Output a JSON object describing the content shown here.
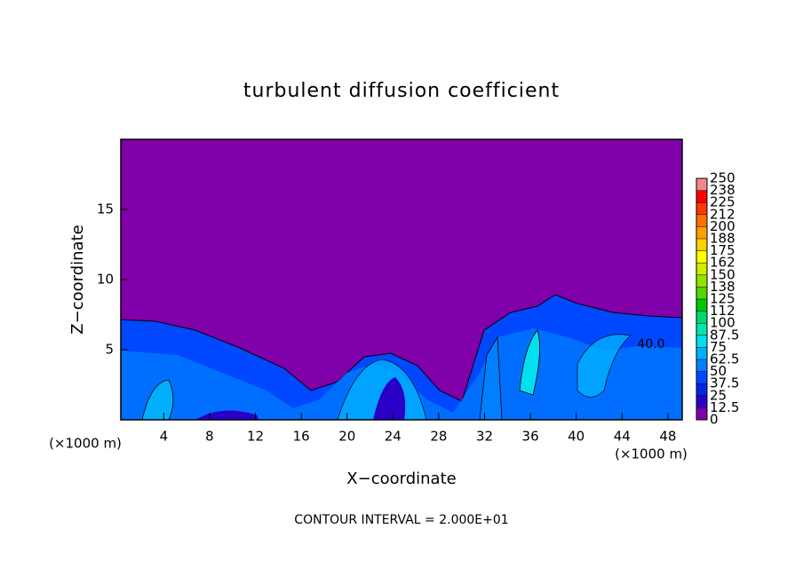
{
  "chart_data": {
    "type": "contour",
    "title": "turbulent diffusion coefficient",
    "xlabel": "X−coordinate",
    "ylabel": "Z−coordinate",
    "unit_label": "(×1000 m)",
    "footer": "CONTOUR INTERVAL = 2.000E+01",
    "contour_label": "40.0",
    "xlim": [
      0.25,
      49.25
    ],
    "xticks": [
      4,
      8,
      12,
      16,
      20,
      24,
      28,
      32,
      36,
      40,
      44,
      48
    ],
    "ylim": [
      0,
      20
    ],
    "yticks": [
      5,
      10,
      15
    ],
    "colorbar": {
      "levels": [
        0,
        12.5,
        25,
        37.5,
        50,
        62.5,
        75,
        87.5,
        100,
        {
          "value": 112.5,
          "label": "112"
        },
        125,
        {
          "value": 137.5,
          "label": "138"
        },
        150,
        {
          "value": 162.5,
          "label": "162"
        },
        175,
        {
          "value": 187.5,
          "label": "188"
        },
        200,
        {
          "value": 212.5,
          "label": "212"
        },
        225,
        {
          "value": 237.5,
          "label": "238"
        },
        250
      ],
      "colors": [
        "#8000aa",
        "#2a00c8",
        "#0028e0",
        "#0048ff",
        "#0080ff",
        "#00b0ff",
        "#00e0f0",
        "#00e8b0",
        "#00d870",
        "#00c800",
        "#50d800",
        "#90e400",
        "#d0ec00",
        "#ffff00",
        "#ffd000",
        "#ffa000",
        "#ff7000",
        "#ff3800",
        "#ff0000",
        "#f08888"
      ]
    }
  }
}
